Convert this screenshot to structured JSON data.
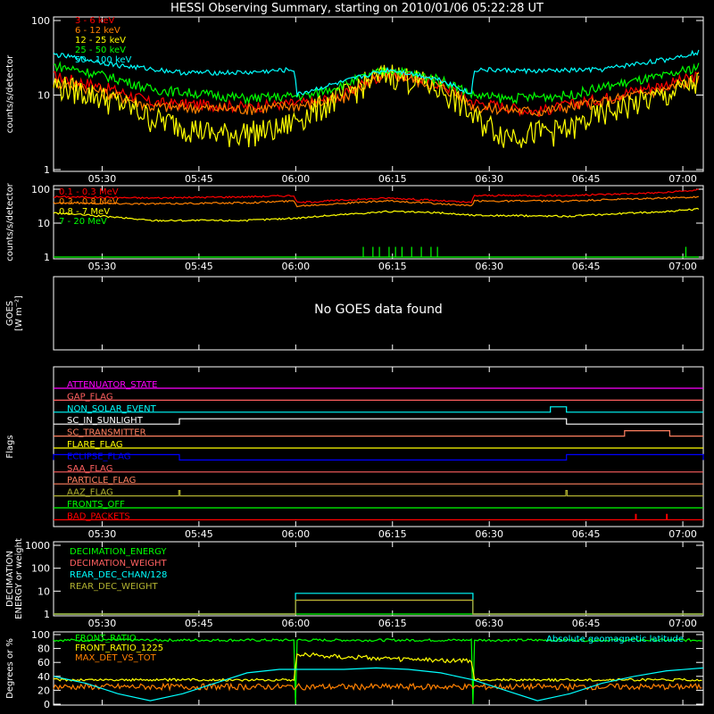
{
  "title": "HESSI Observing Summary, starting on 2010/01/06 05:22:28 UT",
  "time_ticks": [
    "05:30",
    "05:45",
    "06:00",
    "06:15",
    "06:30",
    "06:45",
    "07:00"
  ],
  "time_tick_minutes": [
    7.53,
    22.53,
    37.53,
    52.53,
    67.53,
    82.53,
    97.53
  ],
  "time_range_minutes": [
    0,
    100.7
  ],
  "colors": {
    "background": "#000000",
    "axis": "#ffffff",
    "red": "#ff0000",
    "orange": "#ff8000",
    "yellow": "#ffff00",
    "green": "#00ff00",
    "cyan": "#00ffff",
    "magenta": "#ff00ff",
    "blue": "#0000ff",
    "olive": "#b0b030",
    "coral": "#ff6060",
    "salmon": "#ff8060"
  },
  "chart_data": [
    {
      "type": "line",
      "panel": "low-energy",
      "ylabel": "counts/s/detector",
      "yscale": "log",
      "ylim": [
        1,
        100
      ],
      "ytick_labels": [
        "1",
        "10",
        "100"
      ],
      "series": [
        {
          "name": "3 - 6 keV",
          "color": "#ff0000",
          "x": [
            0,
            15,
            30,
            40,
            45,
            52,
            60,
            65,
            70,
            75,
            85,
            95,
            100
          ],
          "y": [
            18,
            8,
            7,
            8,
            10,
            20,
            14,
            8,
            7,
            6,
            9,
            14,
            18
          ]
        },
        {
          "name": "6 - 12 keV",
          "color": "#ff8000",
          "x": [
            0,
            15,
            30,
            40,
            45,
            52,
            60,
            65,
            70,
            75,
            85,
            95,
            100
          ],
          "y": [
            15,
            7,
            6.5,
            7.5,
            9,
            19,
            13,
            7,
            6.5,
            6,
            8,
            12,
            16
          ]
        },
        {
          "name": "12 - 25 keV",
          "color": "#ffff00",
          "x": [
            0,
            15,
            25,
            35,
            40,
            45,
            52,
            60,
            65,
            70,
            80,
            95,
            100
          ],
          "y": [
            14,
            5,
            3,
            3.5,
            6,
            10,
            20,
            12,
            5,
            3,
            3.5,
            10,
            15
          ]
        },
        {
          "name": "25 - 50 keV",
          "color": "#00ff00",
          "x": [
            0,
            15,
            30,
            40,
            45,
            52,
            60,
            65,
            70,
            80,
            95,
            100
          ],
          "y": [
            25,
            12,
            9,
            10,
            14,
            22,
            16,
            10,
            9,
            10,
            18,
            24
          ]
        },
        {
          "name": "50 - 100 keV",
          "color": "#00ffff",
          "x": [
            0,
            10,
            20,
            30,
            37.4,
            37.6,
            45,
            52,
            60,
            64.9,
            65.1,
            75,
            85,
            95,
            100
          ],
          "y": [
            35,
            25,
            20,
            20,
            22,
            10,
            15,
            22,
            16,
            10,
            22,
            21,
            22,
            30,
            38
          ]
        }
      ]
    },
    {
      "type": "line",
      "panel": "high-energy",
      "ylabel": "counts/s/detector",
      "yscale": "log",
      "ylim": [
        1,
        100
      ],
      "ytick_labels": [
        "1",
        "10",
        "100"
      ],
      "series": [
        {
          "name": "0.1 - 0.3 MeV",
          "color": "#ff0000",
          "x": [
            0,
            15,
            30,
            37.4,
            37.6,
            52,
            64.9,
            65.1,
            80,
            95,
            100
          ],
          "y": [
            60,
            55,
            60,
            65,
            40,
            55,
            40,
            65,
            65,
            80,
            95
          ]
        },
        {
          "name": "0.3 - 0.8 MeV",
          "color": "#ff8000",
          "x": [
            0,
            15,
            30,
            37.4,
            37.6,
            52,
            64.9,
            65.1,
            80,
            95,
            100
          ],
          "y": [
            40,
            37,
            40,
            45,
            32,
            45,
            32,
            45,
            45,
            55,
            60
          ]
        },
        {
          "name": "0.8 - 7 MeV",
          "color": "#ffff00",
          "x": [
            0,
            15,
            30,
            37.5,
            45,
            52,
            60,
            65,
            80,
            95,
            100
          ],
          "y": [
            20,
            12,
            12,
            14,
            18,
            22,
            20,
            17,
            16,
            22,
            26
          ]
        },
        {
          "name": "7 - 20 MeV",
          "color": "#00ff00",
          "x": [
            0,
            100
          ],
          "y": [
            1,
            1
          ],
          "spikes_x": [
            48,
            49.5,
            50.5,
            52,
            53,
            54,
            55.5,
            57,
            58.5,
            59.5,
            98
          ],
          "spikes_y": [
            2,
            2,
            2,
            2,
            2,
            2,
            2,
            2,
            2,
            2,
            2
          ]
        }
      ]
    },
    {
      "type": "line",
      "panel": "goes",
      "ylabel": "GOES",
      "ylabel_units": "[W m⁻²]",
      "message": "No GOES data found",
      "series": []
    },
    {
      "type": "line",
      "panel": "flags",
      "ylabel": "Flags",
      "flags": [
        {
          "name": "ATTENUATOR_STATE",
          "color": "#ff00ff",
          "segments": []
        },
        {
          "name": "GAP_FLAG",
          "color": "#ff6060",
          "segments": []
        },
        {
          "name": "NON_SOLAR_EVENT",
          "color": "#00ffff",
          "segments": [
            [
              77,
              79.5
            ]
          ]
        },
        {
          "name": "SC_IN_SUNLIGHT",
          "color": "#ffffff",
          "segments": [
            [
              19.5,
              79.5
            ]
          ]
        },
        {
          "name": "SC_TRANSMITTER",
          "color": "#ff8060",
          "segments": [
            [
              88.5,
              95.5
            ]
          ]
        },
        {
          "name": "FLARE_FLAG",
          "color": "#ffff00",
          "segments": []
        },
        {
          "name": "ECLIPSE_FLAG",
          "color": "#0000ff",
          "segments": [
            [
              0,
              19.5
            ],
            [
              79.5,
              100.7
            ]
          ]
        },
        {
          "name": "SAA_FLAG",
          "color": "#ff6060",
          "segments": []
        },
        {
          "name": "PARTICLE_FLAG",
          "color": "#ff8060",
          "segments": []
        },
        {
          "name": "AAZ_FLAG",
          "color": "#b0b030",
          "segments": [
            [
              19.4,
              19.6
            ],
            [
              79.4,
              79.6
            ]
          ]
        },
        {
          "name": "FRONTS_OFF",
          "color": "#00ff00",
          "segments": []
        },
        {
          "name": "BAD_PACKETS",
          "color": "#ff0000",
          "segments": [
            [
              90.2,
              90.3
            ],
            [
              95,
              95.1
            ]
          ]
        }
      ]
    },
    {
      "type": "line",
      "panel": "decimation",
      "ylabel": "DECIMATION",
      "ylabel2": "ENERGY or weight",
      "yscale": "log",
      "ylim": [
        1,
        1000
      ],
      "ytick_labels": [
        "1",
        "10",
        "100",
        "1000"
      ],
      "series": [
        {
          "name": "DECIMATION_ENERGY",
          "color": "#00ff00",
          "x": [
            0,
            100.7
          ],
          "y": [
            1,
            1
          ]
        },
        {
          "name": "DECIMATION_WEIGHT",
          "color": "#ff6060",
          "x": [
            0,
            37.5,
            37.5,
            65,
            65,
            100.7
          ],
          "y": [
            1,
            1,
            4,
            4,
            1,
            1
          ]
        },
        {
          "name": "REAR_DEC_CHAN/128",
          "color": "#00ffff",
          "x": [
            0,
            37.5,
            37.5,
            65,
            65,
            100.7
          ],
          "y": [
            1,
            1,
            8,
            8,
            1,
            1
          ]
        },
        {
          "name": "REAR_DEC_WEIGHT",
          "color": "#b0b030",
          "x": [
            0,
            37.5,
            37.5,
            65,
            65,
            100.7
          ],
          "y": [
            1,
            1,
            4,
            4,
            1,
            1
          ]
        }
      ]
    },
    {
      "type": "line",
      "panel": "ratios",
      "ylabel": "Degrees or %",
      "ylim": [
        0,
        100
      ],
      "ytick_labels": [
        "0",
        "20",
        "40",
        "60",
        "80",
        "100"
      ],
      "series": [
        {
          "name": "FRONT_RATIO",
          "color": "#00ff00",
          "x": [
            0,
            37.4,
            37.5,
            37.6,
            58,
            58.1,
            58.2,
            60.5,
            60.6,
            60.7,
            64.9,
            65,
            65.1,
            100.7
          ],
          "y": [
            92,
            92,
            0,
            92,
            92,
            0,
            92,
            92,
            0,
            92,
            92,
            0,
            92,
            92
          ]
        },
        {
          "name": "FRONT_RATIO_1225",
          "color": "#ffff00",
          "x": [
            0,
            37.4,
            37.6,
            52,
            64.9,
            65.1,
            100.7
          ],
          "y": [
            35,
            35,
            72,
            65,
            62,
            35,
            35
          ]
        },
        {
          "name": "MAX_DET_VS_TOT",
          "color": "#ff8000",
          "x": [
            0,
            100.7
          ],
          "y": [
            25,
            25
          ]
        },
        {
          "name": "",
          "color": "#00ffff",
          "x": [
            0,
            5,
            10,
            15,
            20,
            25,
            30,
            35,
            40,
            45,
            50,
            55,
            60,
            65,
            70,
            75,
            80,
            85,
            90,
            95,
            100.7
          ],
          "y": [
            40,
            30,
            15,
            5,
            15,
            30,
            45,
            50,
            50,
            50,
            52,
            50,
            45,
            35,
            20,
            5,
            15,
            30,
            40,
            48,
            52
          ]
        }
      ],
      "annotation": "Absolute geomagnetic latitude"
    }
  ]
}
